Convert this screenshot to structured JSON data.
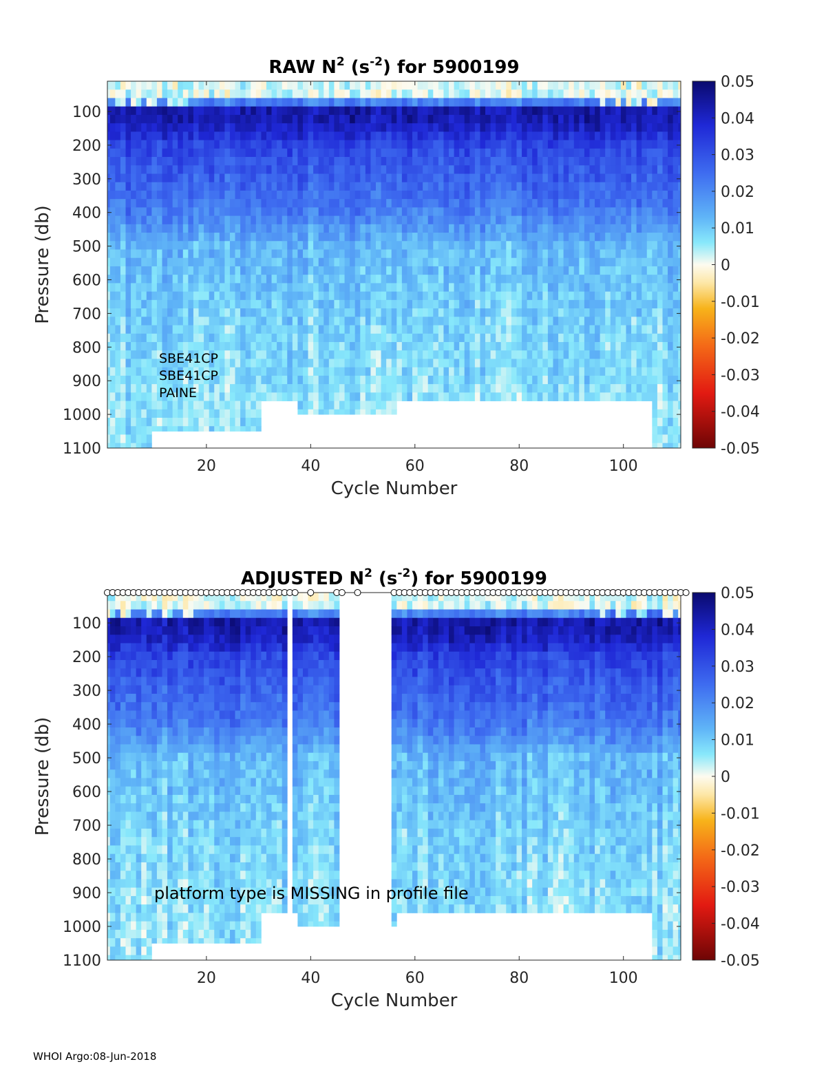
{
  "footer": "WHOI Argo:08-Jun-2018",
  "chart_data": [
    {
      "type": "heatmap",
      "title_parts": [
        "RAW N",
        "2",
        " (s",
        "-2",
        ") for 5900199"
      ],
      "xlabel": "Cycle Number",
      "ylabel": "Pressure (db)",
      "xlim": [
        1,
        111
      ],
      "ylim": [
        1100,
        10
      ],
      "y_reversed": true,
      "xticks": [
        20,
        40,
        60,
        80,
        100
      ],
      "yticks": [
        100,
        200,
        300,
        400,
        500,
        600,
        700,
        800,
        900,
        1000,
        1100
      ],
      "colorbar": {
        "min": -0.05,
        "max": 0.05,
        "ticks": [
          "0.05",
          "0.04",
          "0.03",
          "0.02",
          "0.01",
          "0",
          "-0.01",
          "-0.02",
          "-0.03",
          "-0.04",
          "-0.05"
        ]
      },
      "annotations": [
        "SBE41CP",
        "SBE41CP",
        "PAINE"
      ],
      "missing_cycles": [],
      "value_profile_by_pressure": [
        {
          "p": 50,
          "v": 0.002
        },
        {
          "p": 100,
          "v": 0.045
        },
        {
          "p": 150,
          "v": 0.04
        },
        {
          "p": 200,
          "v": 0.032
        },
        {
          "p": 300,
          "v": 0.027
        },
        {
          "p": 400,
          "v": 0.022
        },
        {
          "p": 500,
          "v": 0.012
        },
        {
          "p": 600,
          "v": 0.011
        },
        {
          "p": 700,
          "v": 0.009
        },
        {
          "p": 800,
          "v": 0.008
        },
        {
          "p": 900,
          "v": 0.007
        },
        {
          "p": 1000,
          "v": 0.006
        }
      ],
      "max_pressure_by_cycle_group": [
        {
          "cycles": [
            1,
            9
          ],
          "pmax": 1100
        },
        {
          "cycles": [
            10,
            30
          ],
          "pmax": 1050
        },
        {
          "cycles": [
            31,
            37
          ],
          "pmax": 960
        },
        {
          "cycles": [
            38,
            56
          ],
          "pmax": 1000
        },
        {
          "cycles": [
            57,
            105
          ],
          "pmax": 960
        },
        {
          "cycles": [
            106,
            111
          ],
          "pmax": 1100
        }
      ]
    },
    {
      "type": "heatmap",
      "title_parts": [
        "ADJUSTED N",
        "2",
        " (s",
        "-2",
        ") for 5900199"
      ],
      "xlabel": "Cycle Number",
      "ylabel": "Pressure (db)",
      "xlim": [
        1,
        111
      ],
      "ylim": [
        1100,
        10
      ],
      "y_reversed": true,
      "xticks": [
        20,
        40,
        60,
        80,
        100
      ],
      "yticks": [
        100,
        200,
        300,
        400,
        500,
        600,
        700,
        800,
        900,
        1000,
        1100
      ],
      "colorbar": {
        "min": -0.05,
        "max": 0.05,
        "ticks": [
          "0.05",
          "0.04",
          "0.03",
          "0.02",
          "0.01",
          "0",
          "-0.01",
          "-0.02",
          "-0.03",
          "-0.04",
          "-0.05"
        ]
      },
      "annotations": [
        "platform type is MISSING in profile file"
      ],
      "missing_cycles": [
        36,
        46,
        47,
        48,
        49,
        50,
        51,
        52,
        53,
        54,
        55
      ],
      "value_profile_by_pressure": [
        {
          "p": 50,
          "v": 0.002
        },
        {
          "p": 100,
          "v": 0.045
        },
        {
          "p": 150,
          "v": 0.04
        },
        {
          "p": 200,
          "v": 0.032
        },
        {
          "p": 300,
          "v": 0.027
        },
        {
          "p": 400,
          "v": 0.022
        },
        {
          "p": 500,
          "v": 0.012
        },
        {
          "p": 600,
          "v": 0.011
        },
        {
          "p": 700,
          "v": 0.009
        },
        {
          "p": 800,
          "v": 0.008
        },
        {
          "p": 900,
          "v": 0.007
        },
        {
          "p": 1000,
          "v": 0.006
        }
      ],
      "max_pressure_by_cycle_group": [
        {
          "cycles": [
            1,
            9
          ],
          "pmax": 1100
        },
        {
          "cycles": [
            10,
            30
          ],
          "pmax": 1050
        },
        {
          "cycles": [
            31,
            37
          ],
          "pmax": 960
        },
        {
          "cycles": [
            38,
            56
          ],
          "pmax": 1000
        },
        {
          "cycles": [
            57,
            105
          ],
          "pmax": 960
        },
        {
          "cycles": [
            106,
            111
          ],
          "pmax": 1100
        }
      ]
    }
  ]
}
